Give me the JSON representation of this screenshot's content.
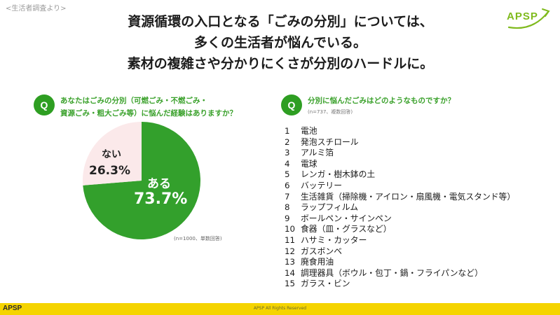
{
  "source_note": "<生活者調査より>",
  "logo_text": "APSP",
  "headline": {
    "line1": "資源循環の入口となる「ごみの分別」については、",
    "line2": "多くの生活者が悩んでいる。",
    "line3": "素材の複雑さや分かりにくさが分別のハードルに。"
  },
  "colors": {
    "accent_green": "#2e9e22",
    "pie_yes": "#33a02c",
    "pie_no": "#fbe9ea",
    "footer": "#f5d400"
  },
  "q1": {
    "badge": "Q",
    "line1": "あなたはごみの分別（可燃ごみ・不燃ごみ・",
    "line2": "資源ごみ・粗大ごみ等）に悩んだ経験はありますか？",
    "note": "(n=1000、単数回答)"
  },
  "q2": {
    "badge": "Q",
    "text": "分別に悩んだごみはどのようなものですか？",
    "note": "(n=737、複数回答)"
  },
  "chart_data": {
    "type": "pie",
    "slices": [
      {
        "label": "ある",
        "value": 73.7,
        "display": "73.7%"
      },
      {
        "label": "ない",
        "value": 26.3,
        "display": "26.3%"
      }
    ]
  },
  "ranking": [
    {
      "rank": "1",
      "item": "電池"
    },
    {
      "rank": "2",
      "item": "発泡スチロール"
    },
    {
      "rank": "3",
      "item": "アルミ箔"
    },
    {
      "rank": "4",
      "item": "電球"
    },
    {
      "rank": "5",
      "item": "レンガ・樹木鉢の土"
    },
    {
      "rank": "6",
      "item": "バッテリー"
    },
    {
      "rank": "7",
      "item": "生活雑貨（掃除機・アイロン・扇風機・電気スタンド等）"
    },
    {
      "rank": "8",
      "item": "ラップフィルム"
    },
    {
      "rank": "9",
      "item": "ボールペン・サインペン"
    },
    {
      "rank": "10",
      "item": "食器（皿・グラスなど）"
    },
    {
      "rank": "11",
      "item": "ハサミ・カッター"
    },
    {
      "rank": "12",
      "item": "ガスボンベ"
    },
    {
      "rank": "13",
      "item": "廃食用油"
    },
    {
      "rank": "14",
      "item": "調理器具（ボウル・包丁・鍋・フライパンなど）"
    },
    {
      "rank": "15",
      "item": "ガラス・ビン"
    }
  ],
  "footer": {
    "logo": "APSP",
    "copyright": "APSP All Rights Reserved"
  }
}
